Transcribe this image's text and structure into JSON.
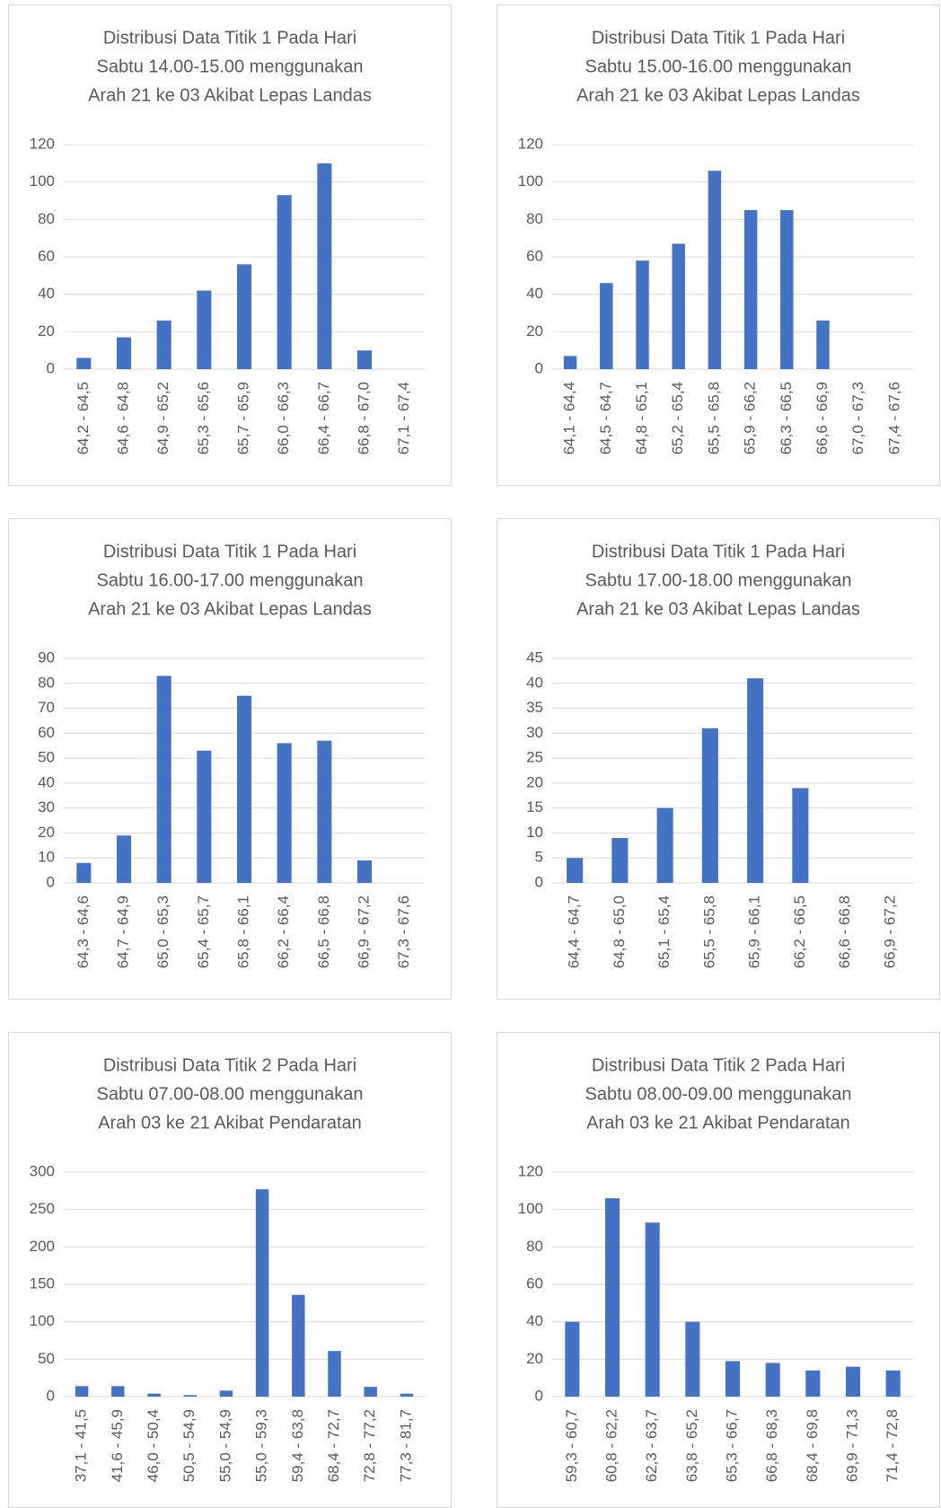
{
  "chart_data": [
    {
      "type": "bar",
      "title": [
        "Distribusi Data Titik 1 Pada Hari",
        "Sabtu 14.00-15.00 menggunakan",
        "Arah 21 ke 03 Akibat Lepas Landas"
      ],
      "categories": [
        "64,2 - 64,5",
        "64,6 - 64,8",
        "64,9 - 65,2",
        "65,3 - 65,6",
        "65,7 - 65,9",
        "66,0 - 66,3",
        "66,4 - 66,7",
        "66,8 - 67,0",
        "67,1 - 67,4"
      ],
      "values": [
        6,
        17,
        26,
        42,
        56,
        93,
        110,
        10,
        0
      ],
      "color": "#4472c4",
      "ylim": [
        0,
        120
      ],
      "yticks": [
        0,
        20,
        40,
        60,
        80,
        100,
        120
      ],
      "grid": true
    },
    {
      "type": "bar",
      "title": [
        "Distribusi Data Titik 1 Pada Hari",
        "Sabtu 15.00-16.00 menggunakan",
        "Arah 21 ke 03 Akibat Lepas Landas"
      ],
      "categories": [
        "64,1 - 64,4",
        "64,5 - 64,7",
        "64,8 - 65,1",
        "65,2 - 65,4",
        "65,5 - 65,8",
        "65,9 - 66,2",
        "66,3 - 66,5",
        "66,6 - 66,9",
        "67,0 - 67,3",
        "67,4 - 67,6"
      ],
      "values": [
        7,
        46,
        58,
        67,
        106,
        85,
        85,
        26,
        0,
        0
      ],
      "color": "#4472c4",
      "ylim": [
        0,
        120
      ],
      "yticks": [
        0,
        20,
        40,
        60,
        80,
        100,
        120
      ],
      "grid": true
    },
    {
      "type": "bar",
      "title": [
        "Distribusi Data Titik 1 Pada Hari",
        "Sabtu 16.00-17.00 menggunakan",
        "Arah 21 ke 03 Akibat Lepas Landas"
      ],
      "categories": [
        "64,3 - 64,6",
        "64,7 - 64,9",
        "65,0 - 65,3",
        "65,4 - 65,7",
        "65,8 - 66,1",
        "66,2 - 66,4",
        "66,5 - 66,8",
        "66,9 - 67,2",
        "67,3 - 67,6"
      ],
      "values": [
        8,
        19,
        83,
        53,
        75,
        56,
        57,
        9,
        0
      ],
      "color": "#4472c4",
      "ylim": [
        0,
        90
      ],
      "yticks": [
        0,
        10,
        20,
        30,
        40,
        50,
        60,
        70,
        80,
        90
      ],
      "grid": true
    },
    {
      "type": "bar",
      "title": [
        "Distribusi Data Titik 1 Pada Hari",
        "Sabtu 17.00-18.00 menggunakan",
        "Arah 21 ke 03 Akibat Lepas Landas"
      ],
      "categories": [
        "64,4 - 64,7",
        "64,8 - 65,0",
        "65,1 - 65,4",
        "65,5 - 65,8",
        "65,9 - 66,1",
        "66,2 - 66,5",
        "66,6 - 66,8",
        "66,9 - 67,2"
      ],
      "values": [
        5,
        9,
        15,
        31,
        41,
        19,
        0,
        0
      ],
      "color": "#4472c4",
      "ylim": [
        0,
        45
      ],
      "yticks": [
        0,
        5,
        10,
        15,
        20,
        25,
        30,
        35,
        40,
        45
      ],
      "grid": true
    },
    {
      "type": "bar",
      "title": [
        "Distribusi Data Titik 2 Pada Hari",
        "Sabtu 07.00-08.00 menggunakan",
        "Arah 03 ke 21 Akibat Pendaratan"
      ],
      "categories": [
        "37,1 - 41,5",
        "41,6 - 45,9",
        "46,0 - 50,4",
        "50,5 - 54,9",
        "55,0 - 54,9",
        "55,0 - 59,3",
        "59,4 - 63,8",
        "68,4 - 72,7",
        "72,8 - 77,2",
        "77,3 - 81,7"
      ],
      "values": [
        14,
        14,
        4,
        2,
        8,
        277,
        136,
        61,
        13,
        4
      ],
      "color": "#4472c4",
      "ylim": [
        0,
        300
      ],
      "yticks": [
        0,
        50,
        100,
        150,
        200,
        250,
        300
      ],
      "grid": true
    },
    {
      "type": "bar",
      "title": [
        "Distribusi Data Titik 2 Pada Hari",
        "Sabtu 08.00-09.00 menggunakan",
        "Arah 03 ke 21 Akibat Pendaratan"
      ],
      "categories": [
        "59,3 - 60,7",
        "60,8 - 62,2",
        "62,3 - 63,7",
        "63,8 - 65,2",
        "65,3 - 66,7",
        "66,8 - 68,3",
        "68,4 - 69,8",
        "69,9 - 71,3",
        "71,4 - 72,8"
      ],
      "values": [
        40,
        106,
        93,
        40,
        19,
        18,
        14,
        16,
        14
      ],
      "color": "#4472c4",
      "ylim": [
        0,
        120
      ],
      "yticks": [
        0,
        20,
        40,
        60,
        80,
        100,
        120
      ],
      "grid": true
    }
  ]
}
